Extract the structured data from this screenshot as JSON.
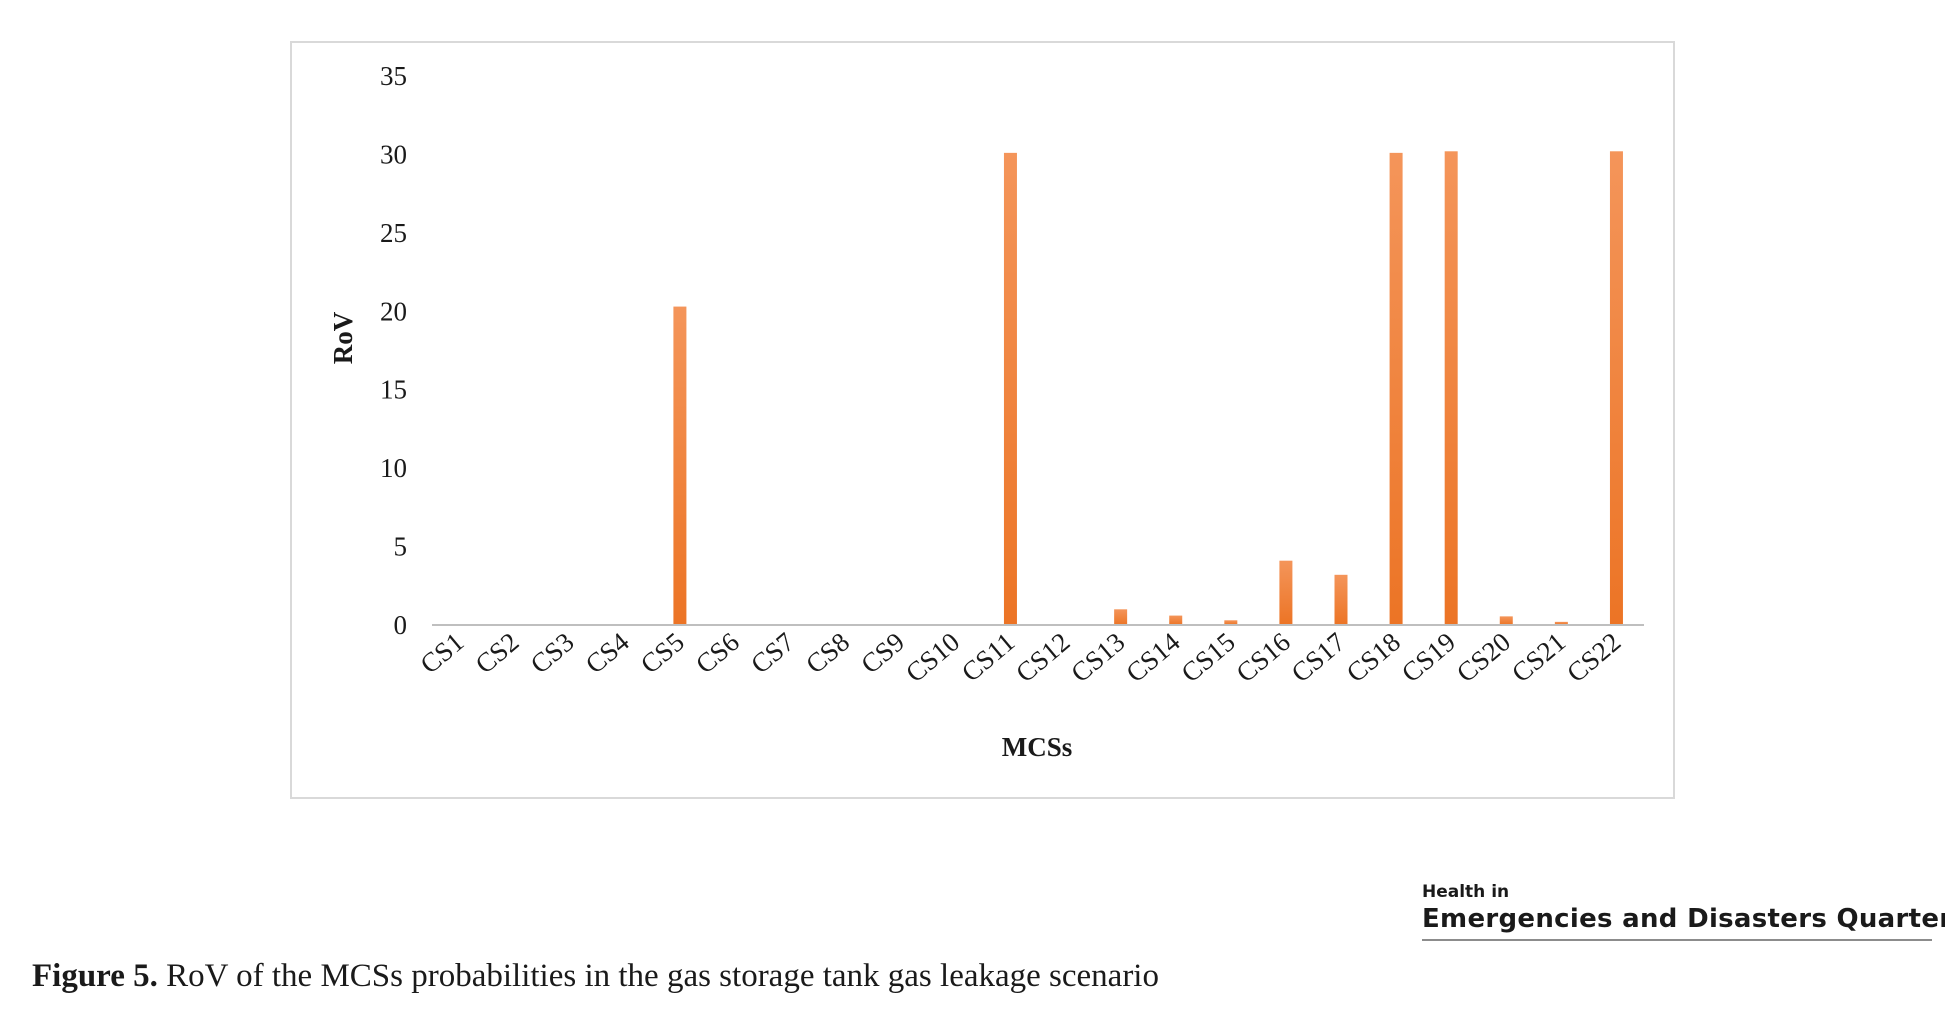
{
  "chart_data": {
    "type": "bar",
    "title": "",
    "xlabel": "MCSs",
    "ylabel": "RoV",
    "ylim": [
      0,
      35
    ],
    "yticks": [
      "0",
      "5",
      "10",
      "15",
      "20",
      "25",
      "30",
      "35"
    ],
    "grid": false,
    "legend": "none",
    "bar_color": "#f07f2d",
    "categories": [
      "CS1",
      "CS2",
      "CS3",
      "CS4",
      "CS5",
      "CS6",
      "CS7",
      "CS8",
      "CS9",
      "CS10",
      "CS11",
      "CS12",
      "CS13",
      "CS14",
      "CS15",
      "CS16",
      "CS17",
      "CS18",
      "CS19",
      "CS20",
      "CS21",
      "CS22"
    ],
    "values": [
      0.05,
      0.05,
      0.05,
      0.03,
      20.3,
      0.05,
      0.05,
      0.05,
      0.03,
      0.03,
      30.1,
      0.05,
      1.0,
      0.6,
      0.3,
      4.1,
      3.2,
      30.1,
      30.2,
      0.55,
      0.2,
      30.2
    ]
  },
  "logo": {
    "line1": "Health in",
    "line2": "Emergencies and Disasters Quarterly"
  },
  "caption": {
    "label": "Figure 5.",
    "text": " RoV of the MCSs probabilities in the gas storage tank gas leakage scenario"
  }
}
